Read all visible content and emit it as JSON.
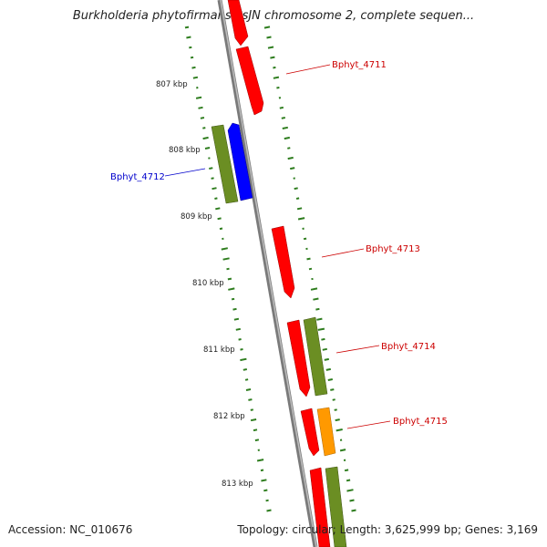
{
  "map": {
    "title": "Burkholderia phytofirmans PsJN chromosome 2, complete sequen...",
    "accession_text": "Accession: NC_010676",
    "summary_text": "Topology: circular; Length: 3,625,999 bp; Genes: 3,169",
    "unit": "kbp"
  },
  "colors": {
    "backbone": "#8c8c8c",
    "gc_ticks": "#2e7d1e",
    "minus_strand": "#ff0000",
    "plus_strand_rna": "#6b8e23",
    "highlight_gene": "#0000ff",
    "orange_gene": "#ff9900",
    "label_red": "#cc0000",
    "label_blue": "#0000cc"
  },
  "scale_ticks": [
    {
      "label": "807 kbp",
      "kbp": 807
    },
    {
      "label": "808 kbp",
      "kbp": 808
    },
    {
      "label": "809 kbp",
      "kbp": 809
    },
    {
      "label": "810 kbp",
      "kbp": 810
    },
    {
      "label": "811 kbp",
      "kbp": 811
    },
    {
      "label": "812 kbp",
      "kbp": 812
    },
    {
      "label": "813 kbp",
      "kbp": 813
    }
  ],
  "gene_labels": [
    {
      "id": "Bphyt_4711",
      "color": "#cc0000"
    },
    {
      "id": "Bphyt_4712",
      "color": "#0000cc"
    },
    {
      "id": "Bphyt_4713",
      "color": "#cc0000"
    },
    {
      "id": "Bphyt_4714",
      "color": "#cc0000"
    },
    {
      "id": "Bphyt_4715",
      "color": "#cc0000"
    }
  ]
}
